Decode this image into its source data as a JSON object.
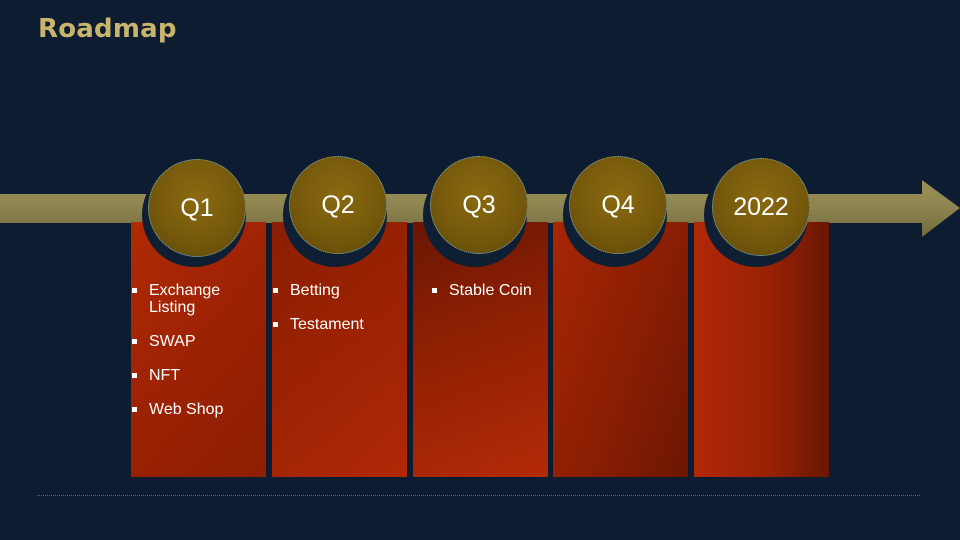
{
  "title": "Roadmap",
  "colors": {
    "background": "#0d1c30",
    "title": "#c9b46b",
    "arrow": "#8f8650",
    "card": "#9c2204",
    "disc": "#7a5c0c"
  },
  "milestones": [
    {
      "label": "Q1",
      "items": [
        "Exchange Listing",
        "SWAP",
        "NFT",
        "Web Shop"
      ]
    },
    {
      "label": "Q2",
      "items": [
        "Betting",
        "Testament"
      ]
    },
    {
      "label": "Q3",
      "items": [
        "Stable Coin"
      ]
    },
    {
      "label": "Q4",
      "items": []
    },
    {
      "label": "2022",
      "items": []
    }
  ]
}
